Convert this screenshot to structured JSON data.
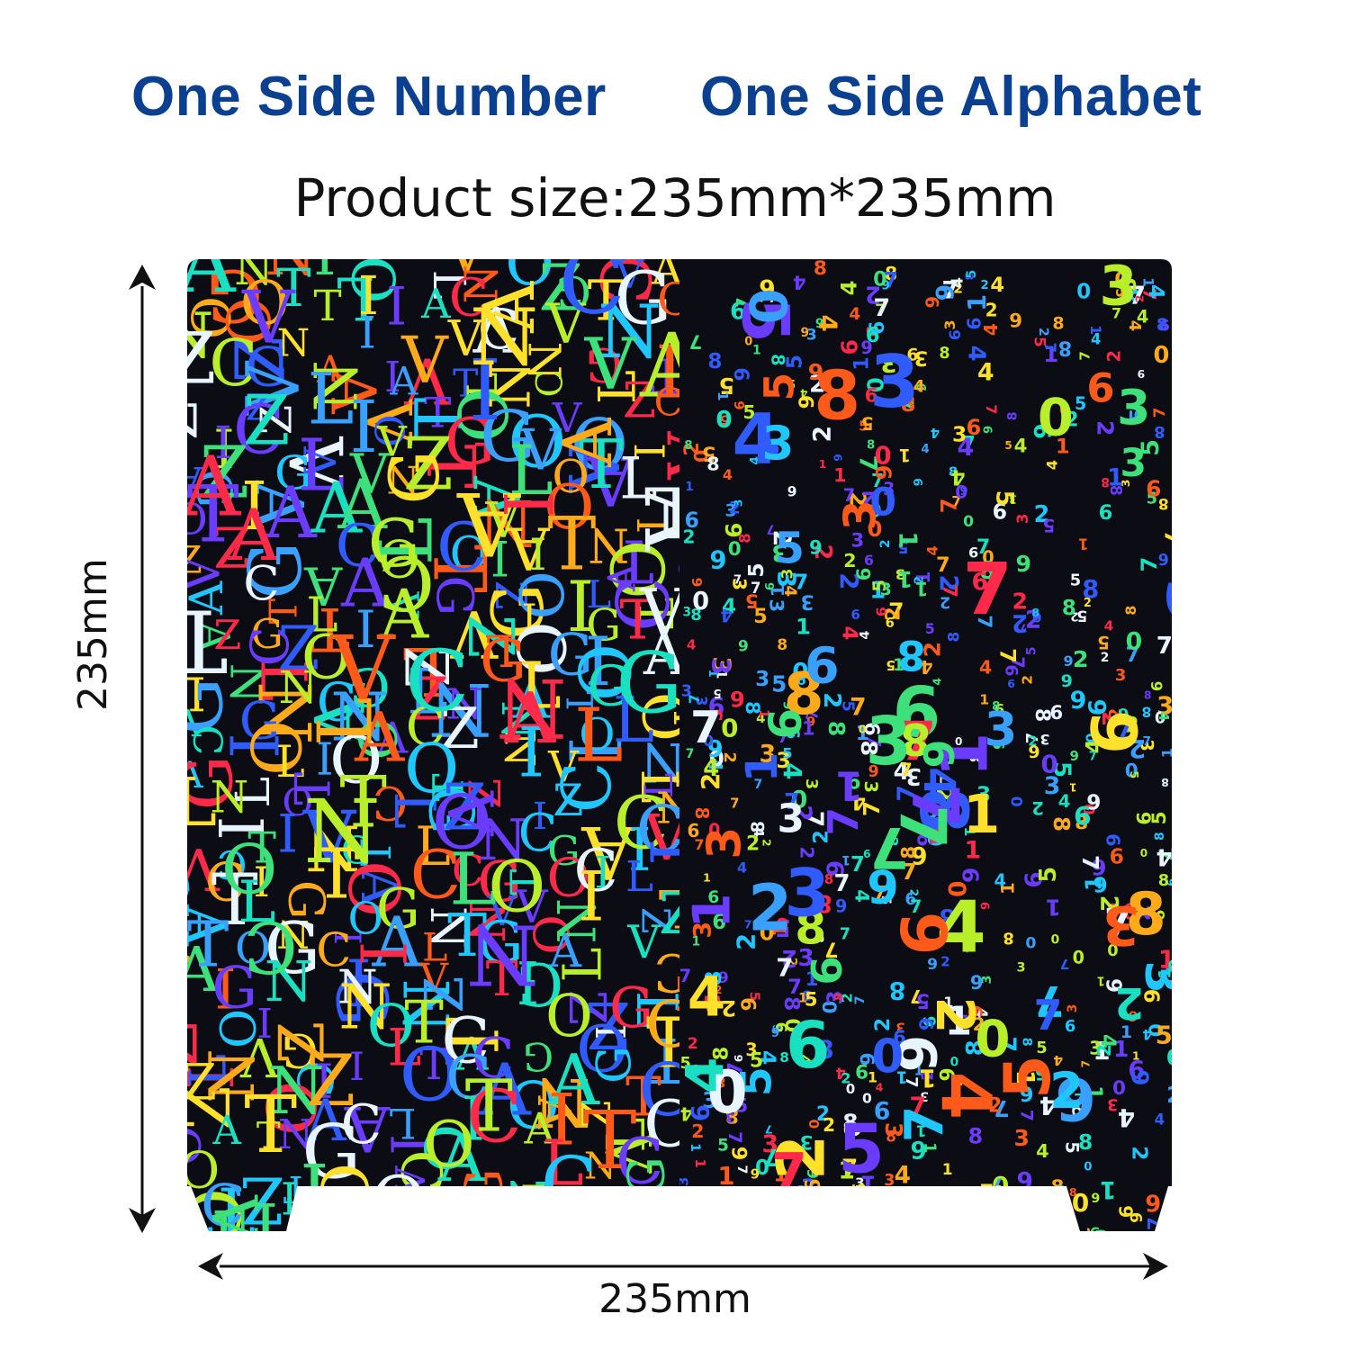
{
  "headings": {
    "left": "One Side Number",
    "right": "One Side Alphabet"
  },
  "product_size": "Product size:235mm*235mm",
  "dimensions": {
    "width_label": "235mm",
    "height_label": "235mm"
  },
  "colors": {
    "heading": "#0b3f8f",
    "sheet_background": "#0c0c14",
    "arrow": "#111111",
    "hologram_palette": [
      "#1fc6ff",
      "#3aa0ff",
      "#2f5bff",
      "#6a3cff",
      "#19e0c0",
      "#3de07a",
      "#b8ee2a",
      "#ffe02a",
      "#ffaa1a",
      "#ff5a1a",
      "#ff2a4a",
      "#e8f4ff"
    ]
  },
  "sheet": {
    "left_pattern_glyphs": [
      "O",
      "A",
      "G",
      "N",
      "Z",
      "V",
      "L",
      "I",
      "C",
      "T"
    ],
    "right_pattern_glyphs": [
      "0",
      "1",
      "2",
      "3",
      "4",
      "5",
      "6",
      "7",
      "8",
      "9"
    ]
  }
}
